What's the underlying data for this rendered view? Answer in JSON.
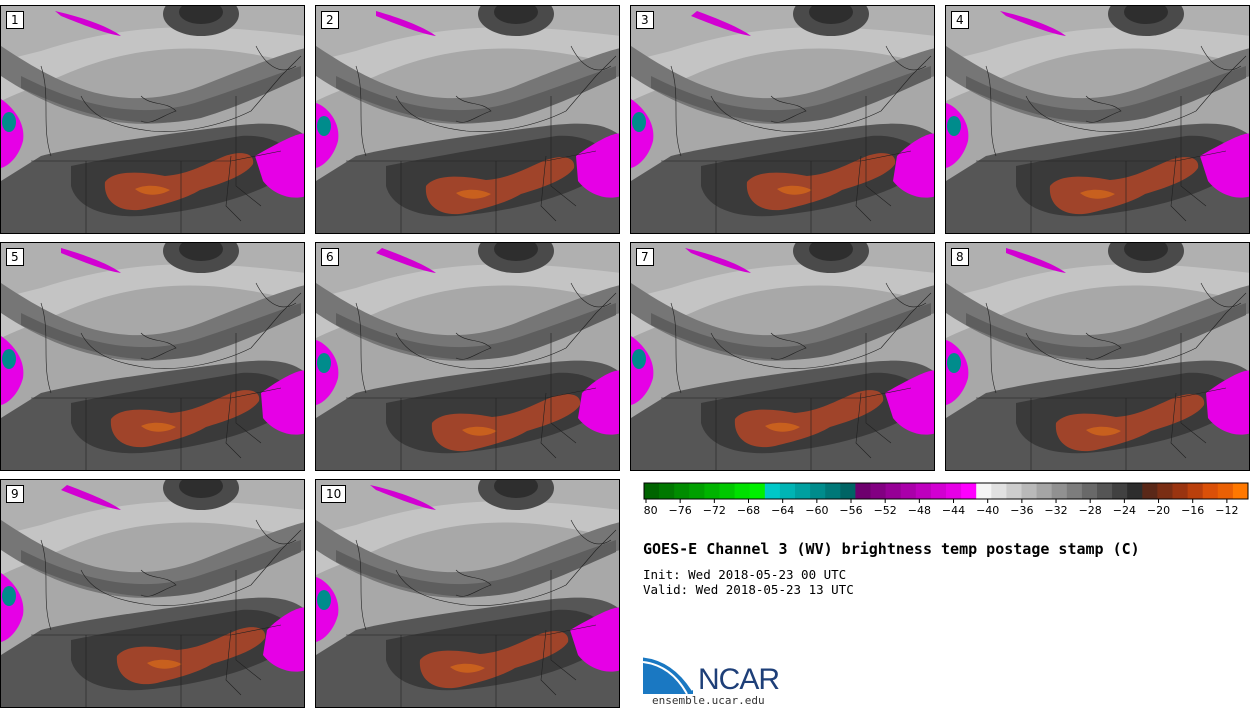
{
  "chart_data": {
    "type": "heatmap",
    "title": "GOES-E Channel 3 (WV) brightness temp postage stamp (C)",
    "init": "Init: Wed 2018-05-23 00 UTC",
    "valid": "Valid: Wed 2018-05-23 13 UTC",
    "panels": [
      "1",
      "2",
      "3",
      "4",
      "5",
      "6",
      "7",
      "8",
      "9",
      "10"
    ],
    "colorbar": {
      "min": -80,
      "max": -10,
      "step": 2,
      "tick_labels": [
        "-80",
        "-76",
        "-72",
        "-68",
        "-64",
        "-60",
        "-56",
        "-52",
        "-48",
        "-44",
        "-40",
        "-36",
        "-32",
        "-28",
        "-24",
        "-20",
        "-16",
        "-12"
      ],
      "tick_values": [
        -80,
        -76,
        -72,
        -68,
        -64,
        -60,
        -56,
        -52,
        -48,
        -44,
        -40,
        -36,
        -32,
        -28,
        -24,
        -20,
        -16,
        -12
      ],
      "colors": [
        "#006400",
        "#007800",
        "#008c00",
        "#00a000",
        "#00b400",
        "#00c800",
        "#00e000",
        "#00f000",
        "#00c8c8",
        "#00b4b4",
        "#00a0a0",
        "#008c8c",
        "#007878",
        "#006464",
        "#6e006e",
        "#820082",
        "#960096",
        "#aa00aa",
        "#be00be",
        "#d200d2",
        "#e600e6",
        "#ff00ff",
        "#f5f5f5",
        "#e1e1e1",
        "#cdcdcd",
        "#b9b9b9",
        "#a5a5a5",
        "#919191",
        "#7d7d7d",
        "#696969",
        "#555555",
        "#414141",
        "#2d2d2d",
        "#5a2818",
        "#7a2e14",
        "#9a3410",
        "#ba400c",
        "#da5008",
        "#ea6004",
        "#ff7800"
      ]
    }
  },
  "footer": {
    "logo_text": "NCAR",
    "url": "ensemble.ucar.edu"
  },
  "colors": {
    "background": "#ffffff",
    "warm_core": "#a0442a",
    "cold_top": "#e600e6",
    "very_cold": "#00a0a0"
  }
}
